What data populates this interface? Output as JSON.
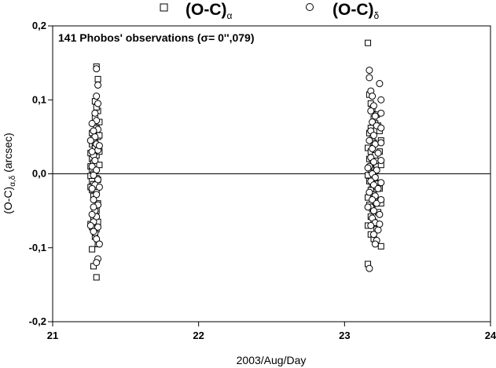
{
  "chart_data": {
    "type": "scatter",
    "title": "",
    "annotation": "141 Phobos' observations (σ= 0'',079)",
    "xlabel": "2003/Aug/Day",
    "ylabel": "(O-C)α,δ (arcsec)",
    "ylabel_main": "(O-C)",
    "ylabel_sub": "α,δ",
    "ylabel_unit": " (arcsec)",
    "xlim": [
      21,
      24
    ],
    "ylim": [
      -0.2,
      0.2
    ],
    "x_ticks": [
      "21",
      "22",
      "23",
      "24"
    ],
    "x_tick_values": [
      21,
      22,
      23,
      24
    ],
    "y_ticks": [
      "0,2",
      "0,1",
      "0,0",
      "-0,1",
      "-0,2"
    ],
    "y_tick_values": [
      0.2,
      0.1,
      0.0,
      -0.1,
      -0.2
    ],
    "zero_line": true,
    "grid": false,
    "legend_placement": "top",
    "series": [
      {
        "name": "(O-C)α",
        "label_main": "(O-C)",
        "label_sub": "α",
        "marker": "square",
        "points": [
          [
            21.27,
            0.055
          ],
          [
            21.28,
            0.048
          ],
          [
            21.27,
            0.04
          ],
          [
            21.29,
            0.035
          ],
          [
            21.26,
            0.028
          ],
          [
            21.3,
            0.025
          ],
          [
            21.27,
            0.02
          ],
          [
            21.28,
            0.015
          ],
          [
            21.26,
            0.01
          ],
          [
            21.29,
            0.008
          ],
          [
            21.27,
            0.005
          ],
          [
            21.28,
            0.0
          ],
          [
            21.26,
            -0.003
          ],
          [
            21.3,
            -0.006
          ],
          [
            21.27,
            -0.01
          ],
          [
            21.28,
            -0.014
          ],
          [
            21.26,
            -0.018
          ],
          [
            21.29,
            -0.02
          ],
          [
            21.27,
            -0.022
          ],
          [
            21.28,
            -0.03
          ],
          [
            21.3,
            0.145
          ],
          [
            21.31,
            0.128
          ],
          [
            21.29,
            0.098
          ],
          [
            21.31,
            0.085
          ],
          [
            21.32,
            0.07
          ],
          [
            21.3,
            0.062
          ],
          [
            21.31,
            0.05
          ],
          [
            21.29,
            0.042
          ],
          [
            21.32,
            0.03
          ],
          [
            21.3,
            0.012
          ],
          [
            21.31,
            -0.04
          ],
          [
            21.3,
            -0.05
          ],
          [
            21.31,
            -0.065
          ],
          [
            21.3,
            -0.075
          ],
          [
            21.29,
            -0.085
          ],
          [
            21.31,
            -0.095
          ],
          [
            21.27,
            -0.072
          ],
          [
            21.26,
            -0.068
          ],
          [
            21.28,
            -0.06
          ],
          [
            21.27,
            -0.102
          ],
          [
            21.28,
            -0.125
          ],
          [
            21.3,
            -0.14
          ],
          [
            21.32,
            0.012
          ],
          [
            21.31,
            -0.008
          ],
          [
            21.3,
            -0.025
          ],
          [
            21.29,
            0.075
          ],
          [
            21.3,
            0.09
          ],
          [
            21.32,
            0.052
          ],
          [
            23.16,
            0.177
          ],
          [
            23.17,
            0.107
          ],
          [
            23.18,
            0.095
          ],
          [
            23.19,
            0.088
          ],
          [
            23.2,
            0.075
          ],
          [
            23.21,
            0.068
          ],
          [
            23.18,
            0.062
          ],
          [
            23.17,
            0.055
          ],
          [
            23.19,
            0.048
          ],
          [
            23.2,
            0.042
          ],
          [
            23.16,
            0.035
          ],
          [
            23.18,
            0.03
          ],
          [
            23.21,
            0.025
          ],
          [
            23.17,
            0.02
          ],
          [
            23.19,
            0.015
          ],
          [
            23.22,
            0.01
          ],
          [
            23.18,
            0.006
          ],
          [
            23.2,
            0.002
          ],
          [
            23.16,
            -0.002
          ],
          [
            23.21,
            -0.006
          ],
          [
            23.17,
            -0.01
          ],
          [
            23.19,
            -0.014
          ],
          [
            23.22,
            -0.018
          ],
          [
            23.18,
            -0.022
          ],
          [
            23.2,
            -0.028
          ],
          [
            23.16,
            -0.032
          ],
          [
            23.21,
            -0.038
          ],
          [
            23.17,
            -0.042
          ],
          [
            23.19,
            -0.048
          ],
          [
            23.23,
            -0.052
          ],
          [
            23.18,
            -0.058
          ],
          [
            23.2,
            -0.065
          ],
          [
            23.16,
            -0.07
          ],
          [
            23.22,
            -0.075
          ],
          [
            23.18,
            -0.082
          ],
          [
            23.2,
            -0.088
          ],
          [
            23.25,
            -0.098
          ],
          [
            23.16,
            -0.122
          ],
          [
            23.24,
            0.058
          ],
          [
            23.25,
            0.045
          ],
          [
            23.24,
            0.03
          ],
          [
            23.25,
            0.012
          ],
          [
            23.24,
            -0.02
          ],
          [
            23.25,
            -0.04
          ],
          [
            23.23,
            0.065
          ],
          [
            23.22,
            0.08
          ]
        ]
      },
      {
        "name": "(O-C)δ",
        "label_main": "(O-C)",
        "label_sub": "δ",
        "marker": "circle",
        "points": [
          [
            21.3,
            0.142
          ],
          [
            21.31,
            0.12
          ],
          [
            21.3,
            0.105
          ],
          [
            21.31,
            0.095
          ],
          [
            21.29,
            0.082
          ],
          [
            21.3,
            0.072
          ],
          [
            21.31,
            0.06
          ],
          [
            21.29,
            0.05
          ],
          [
            21.3,
            0.04
          ],
          [
            21.31,
            0.032
          ],
          [
            21.28,
            0.025
          ],
          [
            21.29,
            0.018
          ],
          [
            21.27,
            0.01
          ],
          [
            21.3,
            0.005
          ],
          [
            21.28,
            -0.002
          ],
          [
            21.31,
            -0.008
          ],
          [
            21.29,
            -0.015
          ],
          [
            21.27,
            -0.02
          ],
          [
            21.3,
            -0.028
          ],
          [
            21.28,
            -0.035
          ],
          [
            21.31,
            -0.042
          ],
          [
            21.29,
            -0.05
          ],
          [
            21.3,
            -0.058
          ],
          [
            21.28,
            -0.065
          ],
          [
            21.31,
            -0.072
          ],
          [
            21.29,
            -0.08
          ],
          [
            21.3,
            -0.088
          ],
          [
            21.32,
            -0.095
          ],
          [
            21.31,
            -0.115
          ],
          [
            21.3,
            -0.12
          ],
          [
            21.27,
            0.068
          ],
          [
            21.28,
            0.058
          ],
          [
            21.26,
            0.045
          ],
          [
            21.27,
            0.03
          ],
          [
            21.28,
            -0.045
          ],
          [
            21.27,
            -0.055
          ],
          [
            21.26,
            -0.07
          ],
          [
            21.28,
            -0.078
          ],
          [
            21.32,
            0.038
          ],
          [
            21.32,
            -0.018
          ],
          [
            23.17,
            0.14
          ],
          [
            23.17,
            0.13
          ],
          [
            23.24,
            0.122
          ],
          [
            23.18,
            0.112
          ],
          [
            23.19,
            0.105
          ],
          [
            23.25,
            0.1
          ],
          [
            23.2,
            0.092
          ],
          [
            23.18,
            0.085
          ],
          [
            23.21,
            0.078
          ],
          [
            23.19,
            0.07
          ],
          [
            23.22,
            0.065
          ],
          [
            23.18,
            0.058
          ],
          [
            23.2,
            0.052
          ],
          [
            23.17,
            0.045
          ],
          [
            23.21,
            0.04
          ],
          [
            23.19,
            0.034
          ],
          [
            23.23,
            0.028
          ],
          [
            23.18,
            0.022
          ],
          [
            23.2,
            0.016
          ],
          [
            23.17,
            0.01
          ],
          [
            23.22,
            0.005
          ],
          [
            23.19,
            0.0
          ],
          [
            23.21,
            -0.005
          ],
          [
            23.18,
            -0.01
          ],
          [
            23.2,
            -0.015
          ],
          [
            23.23,
            -0.02
          ],
          [
            23.17,
            -0.025
          ],
          [
            23.21,
            -0.03
          ],
          [
            23.19,
            -0.035
          ],
          [
            23.22,
            -0.04
          ],
          [
            23.18,
            -0.045
          ],
          [
            23.2,
            -0.05
          ],
          [
            23.24,
            -0.055
          ],
          [
            23.19,
            -0.06
          ],
          [
            23.21,
            -0.066
          ],
          [
            23.18,
            -0.07
          ],
          [
            23.23,
            -0.076
          ],
          [
            23.2,
            -0.082
          ],
          [
            23.22,
            -0.09
          ],
          [
            23.21,
            -0.095
          ],
          [
            23.17,
            -0.128
          ],
          [
            23.25,
            0.082
          ],
          [
            23.25,
            0.062
          ],
          [
            23.25,
            0.042
          ],
          [
            23.25,
            0.018
          ],
          [
            23.25,
            -0.012
          ],
          [
            23.25,
            -0.035
          ],
          [
            23.24,
            -0.068
          ],
          [
            23.16,
            0.008
          ],
          [
            23.16,
            -0.045
          ]
        ]
      }
    ]
  }
}
